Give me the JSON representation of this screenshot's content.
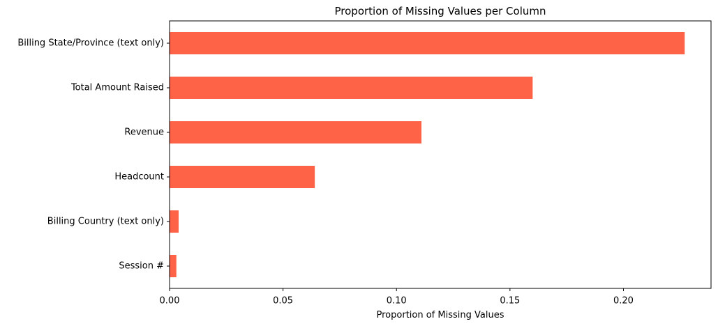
{
  "chart_data": {
    "type": "bar",
    "orientation": "horizontal",
    "title": "Proportion of Missing Values per Column",
    "xlabel": "Proportion of Missing Values",
    "ylabel": "",
    "categories": [
      "Billing State/Province (text only)",
      "Total Amount Raised",
      "Revenue",
      "Headcount",
      "Billing Country (text only)",
      "Session #"
    ],
    "values": [
      0.227,
      0.16,
      0.111,
      0.064,
      0.004,
      0.003
    ],
    "xlim": [
      0,
      0.2386
    ],
    "xticks": [
      0.0,
      0.05,
      0.1,
      0.15,
      0.2
    ],
    "xtick_labels": [
      "0.00",
      "0.05",
      "0.10",
      "0.15",
      "0.20"
    ],
    "grid": false,
    "legend": "none",
    "bar_color": "#ff6347"
  }
}
